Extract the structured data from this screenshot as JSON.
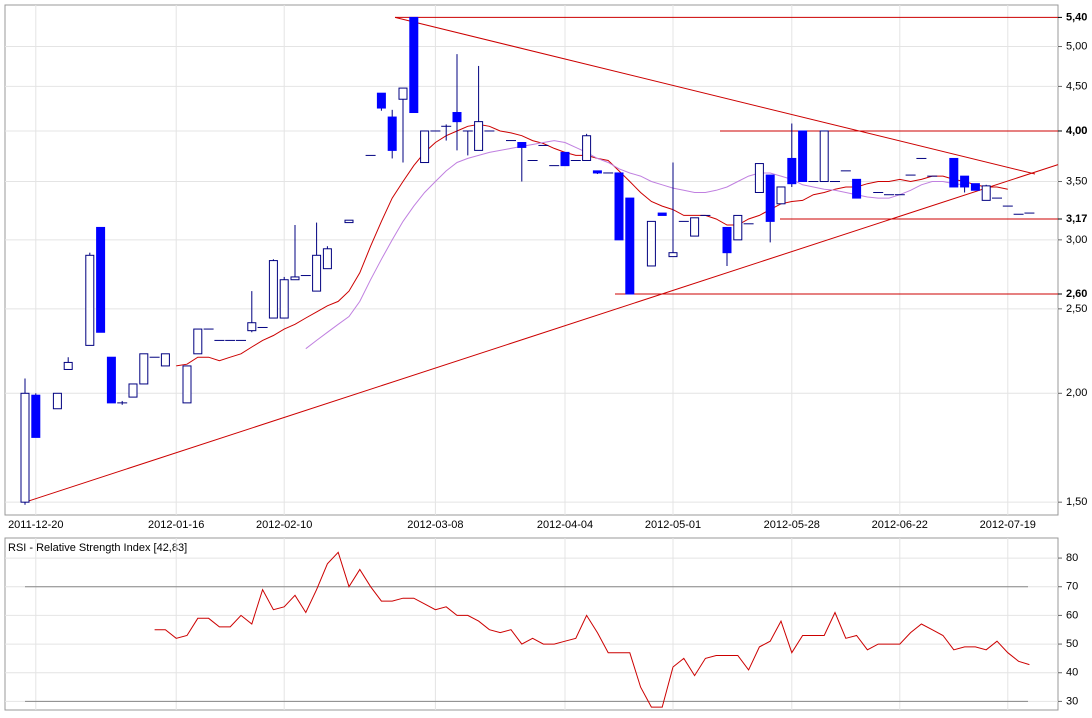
{
  "chart_data": [
    {
      "type": "candlestick",
      "log_scale": true,
      "grid": true,
      "categories": [
        null,
        "2011-12-20",
        null,
        null,
        null,
        null,
        null,
        null,
        null,
        null,
        null,
        null,
        null,
        null,
        "2012-01-16",
        null,
        null,
        null,
        null,
        null,
        null,
        null,
        null,
        null,
        "2012-02-10",
        null,
        null,
        null,
        null,
        null,
        null,
        null,
        null,
        null,
        null,
        null,
        null,
        null,
        "2012-03-08",
        null,
        null,
        null,
        null,
        null,
        null,
        null,
        null,
        null,
        null,
        null,
        "2012-04-04",
        null,
        null,
        null,
        null,
        null,
        null,
        null,
        null,
        null,
        "2012-05-01",
        null,
        null,
        null,
        null,
        null,
        null,
        null,
        null,
        null,
        null,
        "2012-05-28",
        null,
        null,
        null,
        null,
        null,
        null,
        null,
        null,
        null,
        "2012-06-22",
        null,
        null,
        null,
        null,
        null,
        null,
        null,
        null,
        null,
        "2012-07-19",
        null,
        null
      ],
      "open": [
        1.5,
        1.99,
        null,
        1.92,
        2.13,
        null,
        2.27,
        3.1,
        2.2,
        1.95,
        1.98,
        2.05,
        2.2,
        2.15,
        null,
        1.95,
        2.22,
        2.37,
        2.3,
        2.3,
        2.3,
        2.36,
        2.38,
        2.44,
        2.44,
        2.7,
        2.73,
        2.62,
        2.78,
        null,
        3.14,
        null,
        3.75,
        4.42,
        4.15,
        4.35,
        5.4,
        3.68,
        4.0,
        4.05,
        4.2,
        4.0,
        3.8,
        4.0,
        null,
        3.9,
        3.88,
        3.7,
        3.85,
        3.65,
        3.78,
        3.7,
        3.7,
        3.6,
        3.58,
        3.58,
        3.35,
        null,
        2.8,
        3.22,
        2.87,
        3.15,
        3.03,
        3.2,
        null,
        3.1,
        3.0,
        3.13,
        3.4,
        3.56,
        3.3,
        3.72,
        4.0,
        3.5,
        3.5,
        3.5,
        3.6,
        3.52,
        null,
        3.4,
        3.38,
        3.38,
        3.56,
        3.72,
        3.55,
        null,
        3.72,
        3.55,
        3.48,
        3.33,
        3.35,
        3.28,
        3.21,
        3.22
      ],
      "high": [
        2.08,
        2.0,
        null,
        2.0,
        2.2,
        null,
        2.9,
        3.1,
        2.2,
        1.96,
        2.05,
        2.22,
        2.2,
        2.22,
        null,
        2.15,
        2.37,
        2.37,
        2.3,
        2.3,
        2.3,
        2.62,
        2.38,
        2.85,
        2.72,
        3.12,
        2.73,
        3.14,
        2.95,
        null,
        3.16,
        null,
        3.75,
        4.42,
        4.23,
        4.48,
        5.4,
        4.0,
        4.0,
        4.07,
        4.9,
        4.0,
        4.75,
        4.0,
        null,
        3.9,
        3.88,
        3.7,
        3.85,
        3.65,
        3.78,
        3.7,
        3.97,
        3.6,
        3.58,
        3.58,
        3.35,
        null,
        3.15,
        3.22,
        3.68,
        3.15,
        3.18,
        3.2,
        null,
        3.1,
        3.2,
        3.13,
        3.67,
        3.56,
        3.45,
        4.08,
        4.0,
        3.5,
        4.0,
        3.5,
        3.6,
        3.52,
        null,
        3.4,
        3.38,
        3.38,
        3.56,
        3.72,
        3.55,
        null,
        3.72,
        3.55,
        3.48,
        3.47,
        3.35,
        3.28,
        3.21,
        3.22
      ],
      "low": [
        1.49,
        1.78,
        null,
        1.92,
        2.13,
        null,
        2.27,
        2.35,
        1.95,
        1.94,
        1.98,
        2.05,
        2.2,
        2.15,
        null,
        1.95,
        2.22,
        2.37,
        2.3,
        2.3,
        2.3,
        2.35,
        2.38,
        2.44,
        2.44,
        2.7,
        2.73,
        2.62,
        2.78,
        null,
        3.14,
        null,
        3.75,
        4.22,
        3.72,
        3.68,
        4.2,
        3.68,
        4.0,
        3.9,
        3.8,
        3.75,
        3.8,
        4.0,
        null,
        3.9,
        3.5,
        3.7,
        3.85,
        3.65,
        3.65,
        3.7,
        3.7,
        3.57,
        3.58,
        3.0,
        2.6,
        null,
        2.8,
        3.2,
        2.87,
        3.15,
        3.03,
        3.2,
        null,
        2.8,
        3.0,
        3.13,
        3.4,
        2.98,
        3.3,
        3.45,
        3.5,
        3.5,
        3.5,
        3.5,
        3.6,
        3.35,
        null,
        3.4,
        3.38,
        3.38,
        3.56,
        3.72,
        3.55,
        null,
        3.45,
        3.4,
        3.42,
        3.33,
        3.35,
        3.28,
        3.21,
        3.22
      ],
      "close": [
        2.0,
        1.78,
        null,
        2.0,
        2.17,
        null,
        2.88,
        2.35,
        1.95,
        1.95,
        2.05,
        2.22,
        2.2,
        2.22,
        null,
        2.15,
        2.37,
        2.37,
        2.3,
        2.3,
        2.3,
        2.41,
        2.38,
        2.84,
        2.7,
        2.72,
        2.73,
        2.88,
        2.93,
        null,
        3.16,
        null,
        3.75,
        4.25,
        3.8,
        4.48,
        4.2,
        4.0,
        4.0,
        4.05,
        4.1,
        4.0,
        4.1,
        4.0,
        null,
        3.9,
        3.83,
        3.7,
        3.85,
        3.65,
        3.65,
        3.7,
        3.95,
        3.58,
        3.58,
        3.0,
        2.6,
        null,
        3.15,
        3.2,
        2.9,
        3.15,
        3.18,
        3.2,
        null,
        2.9,
        3.2,
        3.13,
        3.67,
        3.15,
        3.45,
        3.48,
        3.5,
        3.5,
        4.0,
        3.5,
        3.6,
        3.35,
        null,
        3.4,
        3.38,
        3.38,
        3.56,
        3.72,
        3.55,
        null,
        3.45,
        3.45,
        3.42,
        3.46,
        3.35,
        3.28,
        3.21,
        3.22
      ],
      "up_color": "#ffffff",
      "down_color": "#0000ff",
      "edge_color": "#000080",
      "overlays": [
        {
          "color": "#cc0000",
          "values": [
            null,
            null,
            null,
            null,
            null,
            null,
            null,
            null,
            null,
            null,
            null,
            null,
            null,
            null,
            2.15,
            2.16,
            2.2,
            2.2,
            2.18,
            2.2,
            2.22,
            2.26,
            2.3,
            2.33,
            2.37,
            2.4,
            2.44,
            2.48,
            2.52,
            2.55,
            2.62,
            2.75,
            2.95,
            3.15,
            3.35,
            3.5,
            3.65,
            3.78,
            3.88,
            3.95,
            4.0,
            4.05,
            4.07,
            4.05,
            4.0,
            3.98,
            3.95,
            3.9,
            3.87,
            3.82,
            3.78,
            3.75,
            3.75,
            3.72,
            3.7,
            3.6,
            3.5,
            3.4,
            3.32,
            3.28,
            3.25,
            3.2,
            3.2,
            3.2,
            3.17,
            3.12,
            3.12,
            3.17,
            3.2,
            3.25,
            3.3,
            3.32,
            3.33,
            3.38,
            3.4,
            3.43,
            3.45,
            3.45,
            3.48,
            3.5,
            3.5,
            3.52,
            3.5,
            3.52,
            3.55,
            3.55,
            3.52,
            3.5,
            3.47,
            3.45,
            3.45,
            3.43,
            null,
            null
          ]
        },
        {
          "color": "#c080e0",
          "values": [
            null,
            null,
            null,
            null,
            null,
            null,
            null,
            null,
            null,
            null,
            null,
            null,
            null,
            null,
            null,
            null,
            null,
            null,
            null,
            null,
            null,
            null,
            null,
            null,
            null,
            null,
            2.25,
            2.3,
            2.35,
            2.4,
            2.45,
            2.55,
            2.7,
            2.85,
            3.0,
            3.15,
            3.28,
            3.4,
            3.5,
            3.6,
            3.68,
            3.72,
            3.75,
            3.78,
            3.8,
            3.82,
            3.84,
            3.86,
            3.88,
            3.9,
            3.88,
            3.83,
            3.78,
            3.72,
            3.68,
            3.62,
            3.58,
            3.55,
            3.5,
            3.47,
            3.44,
            3.42,
            3.4,
            3.4,
            3.42,
            3.45,
            3.5,
            3.55,
            3.58,
            3.58,
            3.55,
            3.52,
            3.47,
            3.45,
            3.43,
            3.42,
            3.4,
            3.38,
            3.36,
            3.35,
            3.35,
            3.38,
            3.42,
            3.47,
            3.5,
            3.5,
            3.48,
            3.47,
            null,
            null,
            null,
            null,
            null,
            null
          ]
        }
      ],
      "trend_lines": [
        {
          "start": 1.5,
          "end": 3.66
        },
        {
          "start": 5.4,
          "end": 3.57
        }
      ],
      "line_color": "#cc0000",
      "ylim": [
        1.45,
        5.58
      ],
      "yticks": [
        {
          "value": 1.5,
          "label": "1,50"
        },
        {
          "value": 2,
          "label": "2,00"
        },
        {
          "value": 2.5,
          "label": "2,50"
        },
        {
          "value": 3,
          "label": "3,00"
        },
        {
          "value": 3.5,
          "label": "3,50"
        },
        {
          "value": 4,
          "label": "4,00"
        },
        {
          "value": 4.5,
          "label": "4,50"
        },
        {
          "value": 5,
          "label": "5,00"
        }
      ],
      "levels": [
        {
          "value": 5.4,
          "label": "5,40"
        },
        {
          "value": 4.0,
          "label": "4,00"
        },
        {
          "value": 3.17,
          "label": "3,17"
        },
        {
          "value": 2.6,
          "label": "2,60"
        }
      ]
    },
    {
      "type": "line",
      "title": "RSI - Relative Strength Index [42,83]",
      "color": "#cc0000",
      "grid": true,
      "values": [
        null,
        null,
        null,
        null,
        null,
        null,
        null,
        null,
        null,
        null,
        null,
        null,
        55,
        55,
        52,
        53,
        59,
        59,
        56,
        56,
        60,
        57,
        69,
        62,
        63,
        67,
        61,
        69,
        78,
        82,
        70,
        76,
        70,
        65,
        65,
        66,
        66,
        64,
        62,
        63,
        60,
        60,
        58,
        55,
        54,
        55,
        50,
        52,
        50,
        50,
        51,
        52,
        60,
        54,
        47,
        47,
        47,
        35,
        28,
        28,
        42,
        45,
        39,
        45,
        46,
        46,
        46,
        41,
        49,
        51,
        58,
        47,
        53,
        53,
        53,
        61,
        52,
        53,
        48,
        50,
        50,
        50,
        54,
        57,
        55,
        53,
        48,
        49,
        49,
        48,
        51,
        47,
        44,
        42.83
      ],
      "ylim": [
        27,
        87
      ],
      "yticks": [
        30,
        40,
        50,
        60,
        70,
        80
      ],
      "levels": [
        70,
        30
      ]
    }
  ]
}
